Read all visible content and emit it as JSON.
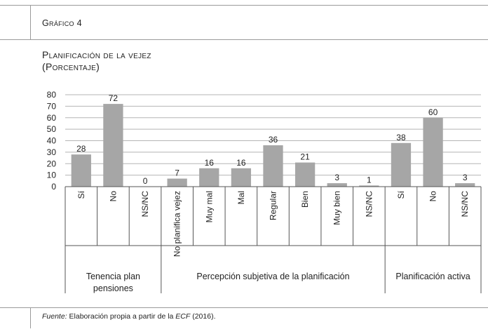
{
  "figure_label": "Gráfico 4",
  "title_line1": "Planificación de la vejez",
  "title_line2": "(Porcentaje)",
  "source": {
    "label": "Fuente:",
    "text_before": " Elaboración propia a partir de la ",
    "text_em": "ECF",
    "text_after": " (2016)."
  },
  "colors": {
    "bar": "#a6a6a6",
    "grid": "#b5b5b5",
    "axis": "#555555",
    "rule": "#9a9a9a"
  },
  "chart_data": {
    "type": "bar",
    "ylim": [
      0,
      80
    ],
    "yticks": [
      0,
      10,
      20,
      30,
      40,
      50,
      60,
      70,
      80
    ],
    "grid": true,
    "categories": [
      "Sí",
      "No",
      "NS/NC",
      "No planifica vejez",
      "Muy mal",
      "Mal",
      "Regular",
      "Bien",
      "Muy bien",
      "NS/NC",
      "Sí",
      "No",
      "NS/NC"
    ],
    "values": [
      28,
      72,
      0,
      7,
      16,
      16,
      36,
      21,
      3,
      1,
      38,
      60,
      3
    ],
    "groups": [
      {
        "lines": [
          "Tenencia plan",
          "pensiones"
        ],
        "count": 3
      },
      {
        "lines": [
          "Percepción subjetiva de la planificación"
        ],
        "count": 7
      },
      {
        "lines": [
          "Planificación activa"
        ],
        "count": 3
      }
    ]
  }
}
